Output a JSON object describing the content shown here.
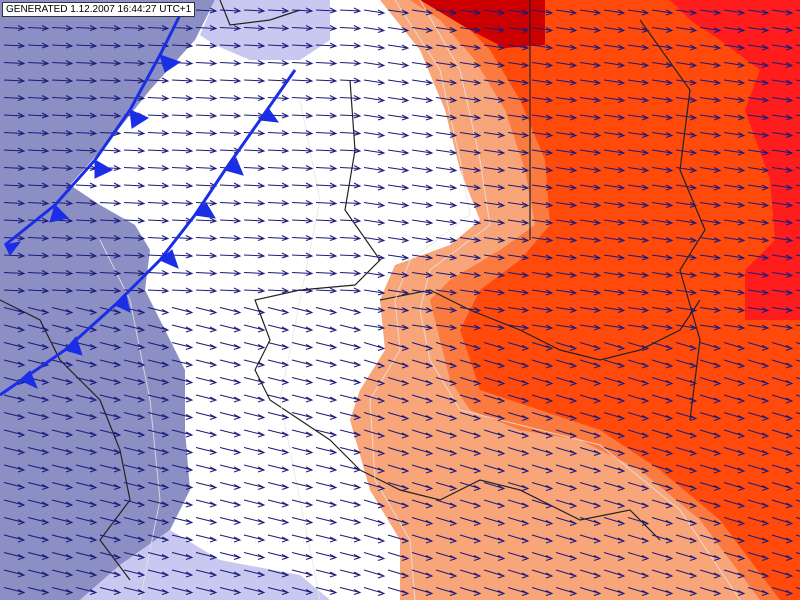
{
  "header": {
    "label": "GENERATED 1.12.2007 16:44:27 UTC+1"
  }
}
